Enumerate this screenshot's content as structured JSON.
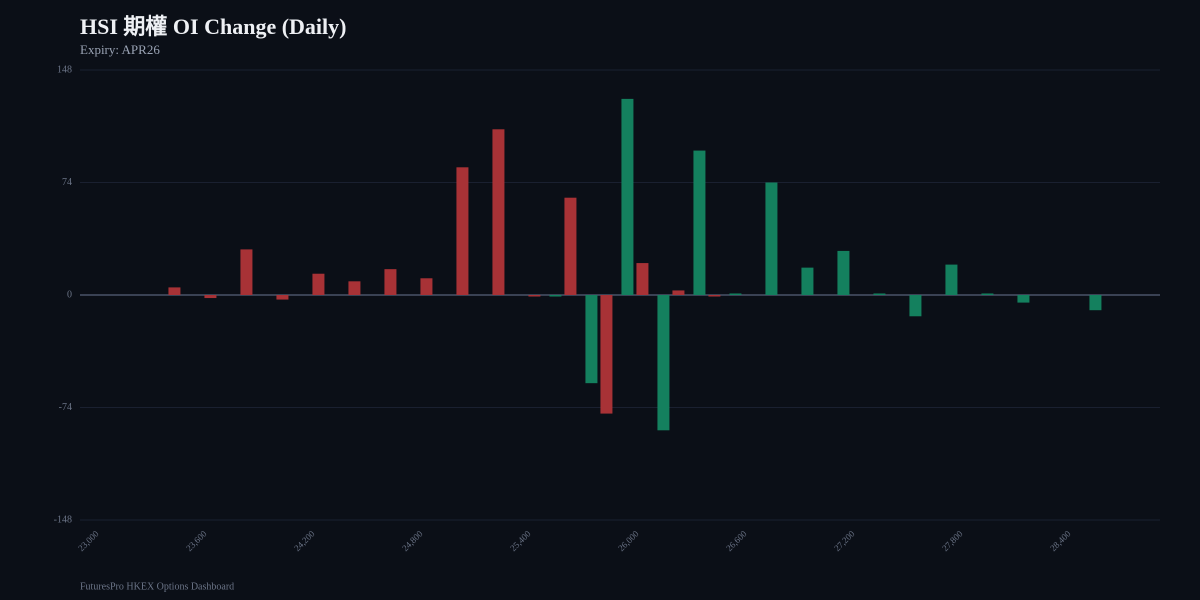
{
  "chart_data": {
    "type": "bar",
    "title": "HSI 期權 OI Change (Daily)",
    "subtitle": "Expiry: APR26",
    "footer": "FuturesPro HKEX Options Dashboard",
    "x": [
      23500,
      23700,
      23900,
      24100,
      24300,
      24500,
      24700,
      24900,
      25100,
      25300,
      25500,
      25700,
      25900,
      26100,
      26300,
      26500,
      26700,
      26900,
      27100,
      27300,
      27500,
      27700,
      27900,
      28100,
      28300,
      28500
    ],
    "series": [
      {
        "color": "#a83236",
        "values": [
          5,
          -2,
          30,
          -3,
          14,
          9,
          17,
          11,
          84,
          109,
          -1,
          64,
          -78,
          21,
          3,
          -1,
          0,
          0,
          0,
          0,
          0,
          0,
          0,
          0,
          0,
          0
        ]
      },
      {
        "color": "#14805e",
        "values": [
          0,
          0,
          0,
          0,
          0,
          0,
          0,
          0,
          0,
          0,
          -1,
          -58,
          129,
          -89,
          95,
          1,
          74,
          18,
          29,
          1,
          -14,
          20,
          1,
          -5,
          0,
          -10
        ]
      }
    ],
    "xlim": [
      22917,
      28917
    ],
    "xticks": [
      {
        "value": 23000,
        "label": "23,000"
      },
      {
        "value": 23600,
        "label": "23,600"
      },
      {
        "value": 24200,
        "label": "24,200"
      },
      {
        "value": 24800,
        "label": "24,800"
      },
      {
        "value": 25400,
        "label": "25,400"
      },
      {
        "value": 26000,
        "label": "26,000"
      },
      {
        "value": 26600,
        "label": "26,600"
      },
      {
        "value": 27200,
        "label": "27,200"
      },
      {
        "value": 27800,
        "label": "27,800"
      },
      {
        "value": 28400,
        "label": "28,400"
      }
    ],
    "ylim": [
      -148,
      148
    ],
    "yticks": [
      -148,
      -74,
      0,
      74,
      148
    ],
    "grid": true
  }
}
